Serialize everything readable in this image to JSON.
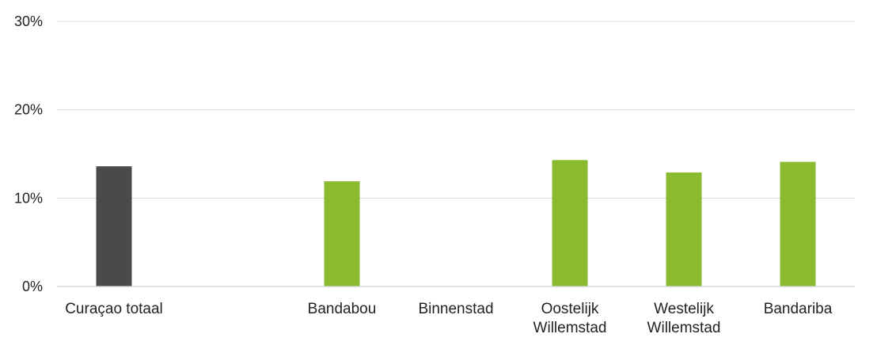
{
  "chart_data": {
    "type": "bar",
    "title": "",
    "xlabel": "",
    "ylabel": "",
    "ylim": [
      0,
      30
    ],
    "yticks": [
      {
        "value": 0,
        "label": "0%"
      },
      {
        "value": 10,
        "label": "10%"
      },
      {
        "value": 20,
        "label": "20%"
      },
      {
        "value": 30,
        "label": "30%"
      }
    ],
    "grid": true,
    "legend": "none",
    "categories": [
      {
        "label_lines": [
          "Curaçao totaal"
        ],
        "value": 13.6,
        "color": "#4a4a4a"
      },
      {
        "label_lines": [],
        "value": null,
        "color": "#8aba2e"
      },
      {
        "label_lines": [
          "Bandabou"
        ],
        "value": 11.9,
        "color": "#8aba2e"
      },
      {
        "label_lines": [
          "Binnenstad"
        ],
        "value": null,
        "color": "#8aba2e"
      },
      {
        "label_lines": [
          "Oostelijk",
          "Willemstad"
        ],
        "value": 14.3,
        "color": "#8aba2e"
      },
      {
        "label_lines": [
          "Westelijk",
          "Willemstad"
        ],
        "value": 12.9,
        "color": "#8aba2e"
      },
      {
        "label_lines": [
          "Bandariba"
        ],
        "value": 14.1,
        "color": "#8aba2e"
      }
    ]
  }
}
